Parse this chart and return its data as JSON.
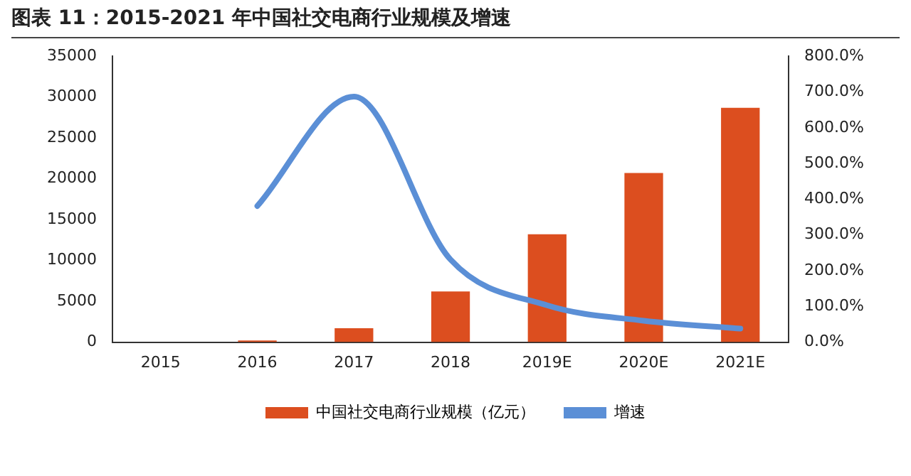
{
  "chart_data": {
    "type": "bar",
    "title": "图表 11：2015-2021 年中国社交电商行业规模及增速",
    "categories": [
      "2015",
      "2016",
      "2017",
      "2018",
      "2019E",
      "2020E",
      "2021E"
    ],
    "series": [
      {
        "name": "中国社交电商行业规模（亿元）",
        "color": "#dc4e1f",
        "values": [
          null,
          200,
          1700,
          6200,
          13200,
          20700,
          28700
        ]
      },
      {
        "name": "增速",
        "type": "line",
        "axis": "y2",
        "color": "#5b8fd6",
        "values": [
          null,
          381,
          687,
          231,
          103,
          60,
          38
        ]
      }
    ],
    "ylim": [
      0,
      35000
    ],
    "yticks": [
      0,
      5000,
      10000,
      15000,
      20000,
      25000,
      30000,
      35000
    ],
    "y2lim": [
      0,
      800
    ],
    "y2ticks": [
      {
        "value": 0,
        "label": "0.0%"
      },
      {
        "value": 100,
        "label": "100.0%"
      },
      {
        "value": 200,
        "label": "200.0%"
      },
      {
        "value": 300,
        "label": "300.0%"
      },
      {
        "value": 400,
        "label": "400.0%"
      },
      {
        "value": 500,
        "label": "500.0%"
      },
      {
        "value": 600,
        "label": "600.0%"
      },
      {
        "value": 700,
        "label": "700.0%"
      },
      {
        "value": 800,
        "label": "800.0%"
      }
    ],
    "grid": false,
    "legend": "bottom",
    "marker": "none"
  }
}
